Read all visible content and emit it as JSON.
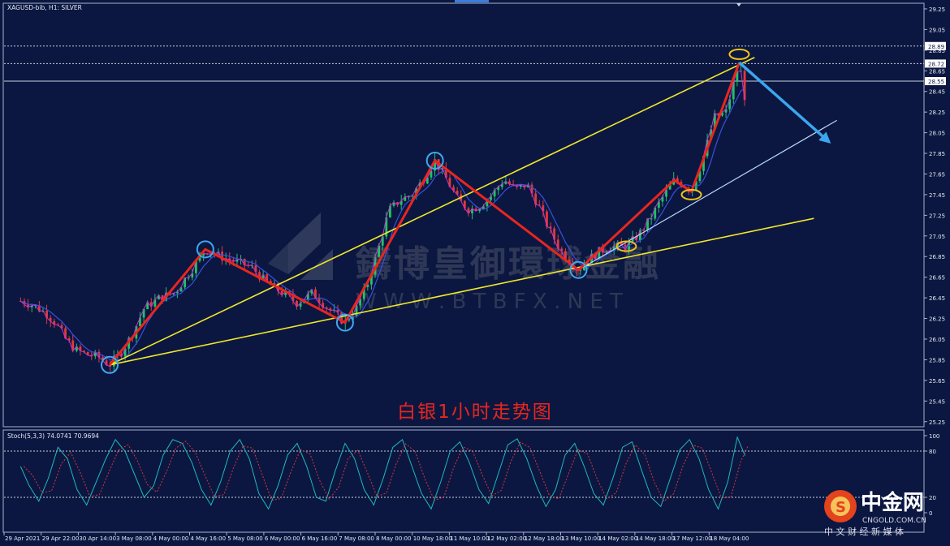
{
  "header": {
    "symbol_label": "XAGUSD-bib, H1:  SILVER",
    "stoch_label": "Stoch(5,3,3) 74.0741 70.9694"
  },
  "caption": "白银1小时走势图",
  "watermark": {
    "cn": "鑄博皇御環球金融",
    "en": "W W W . B T B F X . N E T"
  },
  "logo": {
    "cn": "中金网",
    "domain": "CNGOLD.COM.CN",
    "sub": "中 文 财 经 新 媒 体"
  },
  "colors": {
    "background": "#0b1741",
    "bull_candle": "#1ec36a",
    "bear_candle": "#e03a3a",
    "channel": "#f1e62a",
    "support_line": "#b7d8f4",
    "arrow_red": "#e8261e",
    "arrow_blue": "#3ba6ee",
    "stoch_main": "#1fb9b9",
    "stoch_signal": "#d9343a",
    "caption": "#e8261e"
  },
  "chart_data": {
    "type": "line",
    "title": "",
    "y_axis": {
      "min": 25.17,
      "max": 29.35,
      "ticks": [
        29.25,
        29.05,
        28.85,
        28.65,
        28.45,
        28.25,
        28.05,
        27.85,
        27.65,
        27.45,
        27.25,
        27.05,
        26.85,
        26.65,
        26.45,
        26.25,
        26.05,
        25.85,
        25.65,
        25.45,
        25.25
      ],
      "tick_labels": [
        "29.25",
        "29.05",
        "28.85",
        "28.65",
        "28.45",
        "28.25",
        "28.05",
        "27.85",
        "27.65",
        "27.45",
        "27.25",
        "27.05",
        "26.85",
        "26.65",
        "26.45",
        "26.25",
        "26.05",
        "25.85",
        "25.65",
        "25.45",
        "25.25"
      ]
    },
    "x_axis": {
      "tick_labels": [
        "29 Apr 2021",
        "29 Apr 22:00",
        "30 Apr 14:00",
        "3 May 08:00",
        "4 May 00:00",
        "4 May 16:00",
        "5 May 08:00",
        "6 May 00:00",
        "6 May 16:00",
        "7 May 08:00",
        "8 May 00:00",
        "10 May 18:00",
        "11 May 10:00",
        "12 May 02:00",
        "12 May 18:00",
        "13 May 10:00",
        "14 May 02:00",
        "14 May 18:00",
        "17 May 12:00",
        "18 May 04:00"
      ]
    },
    "price_levels": [
      {
        "label": "28.89",
        "value": 28.89,
        "style": "dotted"
      },
      {
        "label": "28.72",
        "value": 28.72,
        "style": "dotted"
      },
      {
        "label": "28.55",
        "value": 28.55,
        "style": "solid"
      }
    ],
    "zigzag_path": {
      "name": "",
      "points": [
        [
          0.0,
          25.8
        ],
        [
          5.0,
          26.92
        ],
        [
          12.3,
          26.21
        ],
        [
          17.0,
          27.78
        ],
        [
          24.5,
          26.72
        ],
        [
          29.5,
          27.59
        ],
        [
          30.4,
          27.48
        ],
        [
          32.9,
          28.73
        ]
      ]
    },
    "forecast_arrow": {
      "from": [
        32.9,
        28.73
      ],
      "to": [
        37.6,
        27.96
      ]
    },
    "channel_lines": [
      {
        "from": [
          0.0,
          25.8
        ],
        "to": [
          33.7,
          28.78
        ]
      },
      {
        "from": [
          0.0,
          25.8
        ],
        "to": [
          36.8,
          27.22
        ]
      }
    ],
    "support_line": {
      "from": [
        24.5,
        26.72
      ],
      "to": [
        38.0,
        28.17
      ]
    },
    "highlight_circles": [
      {
        "at": [
          0.0,
          25.8
        ],
        "color": "blue"
      },
      {
        "at": [
          5.0,
          26.92
        ],
        "color": "blue"
      },
      {
        "at": [
          12.3,
          26.21
        ],
        "color": "blue"
      },
      {
        "at": [
          17.0,
          27.78
        ],
        "color": "blue"
      },
      {
        "at": [
          24.5,
          26.72
        ],
        "color": "blue"
      },
      {
        "at": [
          27.0,
          26.95
        ],
        "color": "yellow"
      },
      {
        "at": [
          30.4,
          27.45
        ],
        "color": "yellow"
      },
      {
        "at": [
          32.9,
          28.81
        ],
        "color": "yellow"
      }
    ],
    "price_series": [
      [
        -4.65,
        26.42
      ],
      [
        -4.0,
        26.38
      ],
      [
        -3.3,
        26.3
      ],
      [
        -2.8,
        26.2
      ],
      [
        -2.3,
        26.05
      ],
      [
        -1.8,
        25.95
      ],
      [
        -1.2,
        25.9
      ],
      [
        -0.6,
        25.88
      ],
      [
        0.0,
        25.8
      ],
      [
        0.6,
        25.92
      ],
      [
        1.2,
        26.1
      ],
      [
        1.8,
        26.35
      ],
      [
        2.6,
        26.45
      ],
      [
        3.4,
        26.5
      ],
      [
        4.2,
        26.7
      ],
      [
        5.0,
        26.92
      ],
      [
        5.8,
        26.85
      ],
      [
        6.6,
        26.8
      ],
      [
        7.4,
        26.75
      ],
      [
        8.2,
        26.6
      ],
      [
        9.0,
        26.5
      ],
      [
        9.8,
        26.4
      ],
      [
        10.6,
        26.5
      ],
      [
        11.4,
        26.35
      ],
      [
        12.3,
        26.21
      ],
      [
        12.9,
        26.35
      ],
      [
        13.5,
        26.6
      ],
      [
        14.0,
        26.9
      ],
      [
        14.6,
        27.3
      ],
      [
        15.2,
        27.4
      ],
      [
        15.8,
        27.45
      ],
      [
        16.4,
        27.6
      ],
      [
        17.0,
        27.78
      ],
      [
        17.6,
        27.6
      ],
      [
        18.2,
        27.4
      ],
      [
        18.8,
        27.3
      ],
      [
        19.4,
        27.35
      ],
      [
        20.0,
        27.45
      ],
      [
        20.6,
        27.6
      ],
      [
        21.2,
        27.5
      ],
      [
        21.8,
        27.55
      ],
      [
        22.4,
        27.35
      ],
      [
        23.0,
        27.1
      ],
      [
        23.6,
        26.9
      ],
      [
        24.5,
        26.72
      ],
      [
        25.0,
        26.82
      ],
      [
        25.6,
        26.9
      ],
      [
        26.2,
        26.95
      ],
      [
        27.0,
        26.95
      ],
      [
        27.6,
        27.05
      ],
      [
        28.2,
        27.2
      ],
      [
        28.8,
        27.4
      ],
      [
        29.5,
        27.59
      ],
      [
        30.0,
        27.55
      ],
      [
        30.4,
        27.48
      ],
      [
        31.0,
        27.8
      ],
      [
        31.6,
        28.2
      ],
      [
        32.2,
        28.25
      ],
      [
        32.9,
        28.73
      ],
      [
        33.2,
        28.38
      ]
    ],
    "stochastic": {
      "name": "Stoch(5,3,3)",
      "main": 74.0741,
      "signal": 70.9694,
      "levels": [
        80,
        20
      ],
      "y_ticks": [
        100,
        80,
        20,
        0
      ],
      "y_tick_labels": [
        "100",
        "80",
        "20",
        "0"
      ],
      "series": [
        [
          -4.65,
          60
        ],
        [
          -4.2,
          35
        ],
        [
          -3.7,
          15
        ],
        [
          -3.2,
          45
        ],
        [
          -2.7,
          85
        ],
        [
          -2.2,
          70
        ],
        [
          -1.7,
          30
        ],
        [
          -1.2,
          10
        ],
        [
          -0.7,
          40
        ],
        [
          -0.2,
          70
        ],
        [
          0.3,
          95
        ],
        [
          0.8,
          80
        ],
        [
          1.3,
          50
        ],
        [
          1.8,
          20
        ],
        [
          2.3,
          35
        ],
        [
          2.8,
          75
        ],
        [
          3.3,
          95
        ],
        [
          3.8,
          90
        ],
        [
          4.3,
          65
        ],
        [
          4.8,
          30
        ],
        [
          5.3,
          10
        ],
        [
          5.8,
          40
        ],
        [
          6.3,
          80
        ],
        [
          6.8,
          95
        ],
        [
          7.3,
          70
        ],
        [
          7.8,
          25
        ],
        [
          8.3,
          5
        ],
        [
          8.8,
          35
        ],
        [
          9.3,
          75
        ],
        [
          9.8,
          90
        ],
        [
          10.3,
          60
        ],
        [
          10.8,
          20
        ],
        [
          11.3,
          15
        ],
        [
          11.8,
          55
        ],
        [
          12.3,
          90
        ],
        [
          12.8,
          70
        ],
        [
          13.3,
          30
        ],
        [
          13.8,
          10
        ],
        [
          14.3,
          45
        ],
        [
          14.8,
          85
        ],
        [
          15.3,
          95
        ],
        [
          15.8,
          60
        ],
        [
          16.3,
          25
        ],
        [
          16.8,
          5
        ],
        [
          17.3,
          40
        ],
        [
          17.8,
          80
        ],
        [
          18.3,
          92
        ],
        [
          18.8,
          65
        ],
        [
          19.3,
          30
        ],
        [
          19.8,
          12
        ],
        [
          20.3,
          50
        ],
        [
          20.8,
          88
        ],
        [
          21.3,
          96
        ],
        [
          21.8,
          70
        ],
        [
          22.3,
          35
        ],
        [
          22.8,
          8
        ],
        [
          23.3,
          30
        ],
        [
          23.8,
          75
        ],
        [
          24.3,
          90
        ],
        [
          24.8,
          60
        ],
        [
          25.3,
          25
        ],
        [
          25.8,
          10
        ],
        [
          26.3,
          45
        ],
        [
          26.8,
          85
        ],
        [
          27.3,
          92
        ],
        [
          27.8,
          55
        ],
        [
          28.3,
          20
        ],
        [
          28.8,
          8
        ],
        [
          29.3,
          45
        ],
        [
          29.8,
          82
        ],
        [
          30.3,
          95
        ],
        [
          30.8,
          70
        ],
        [
          31.3,
          30
        ],
        [
          31.8,
          5
        ],
        [
          32.3,
          40
        ],
        [
          32.8,
          98
        ],
        [
          33.2,
          74
        ]
      ]
    }
  }
}
